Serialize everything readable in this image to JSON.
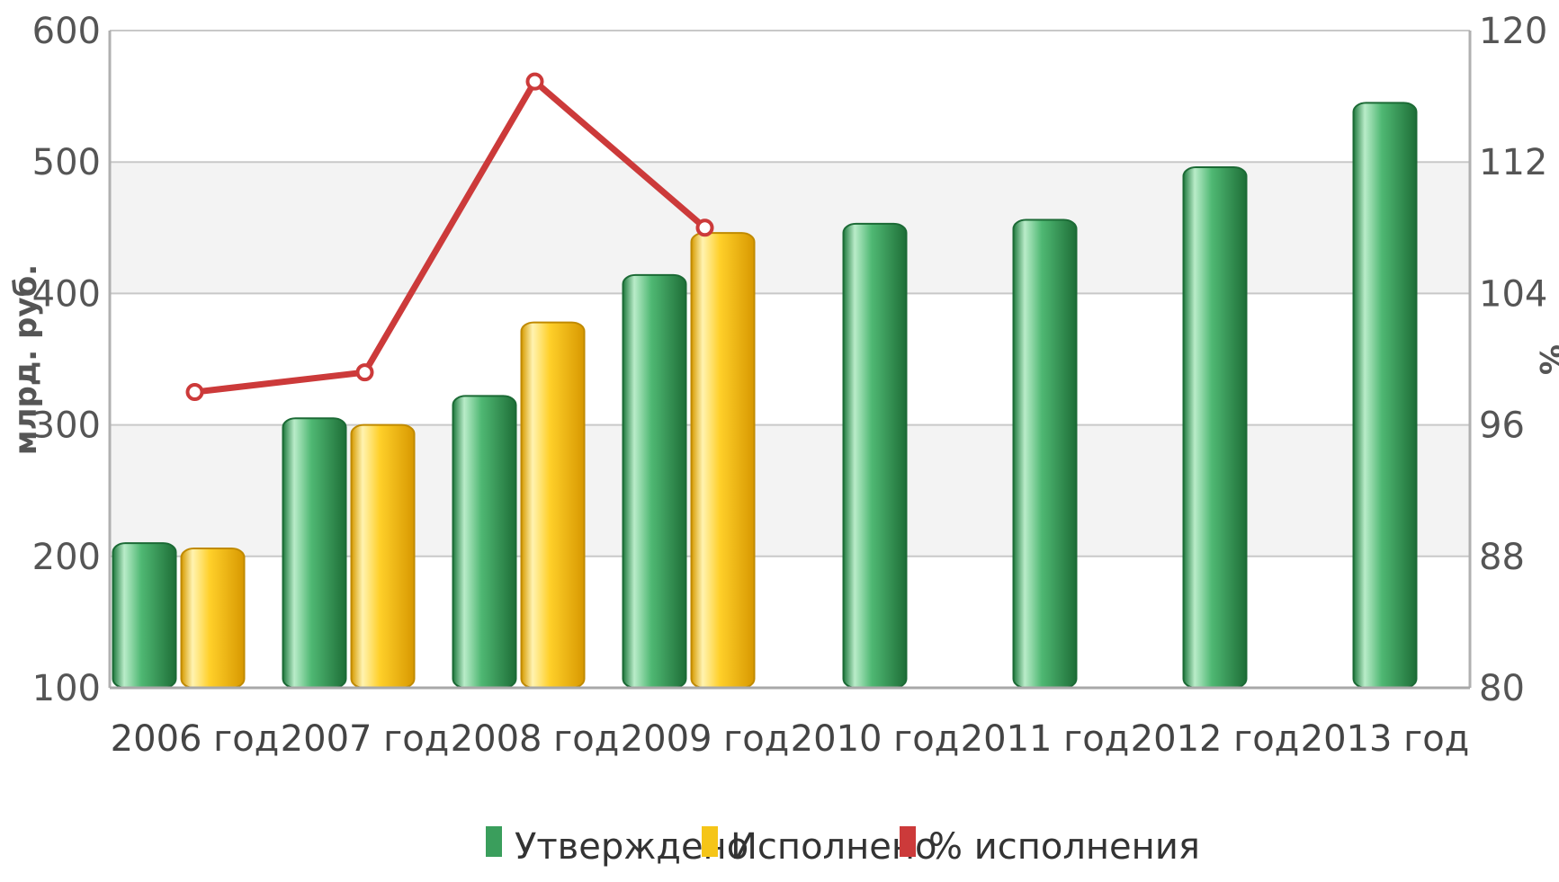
{
  "chart_data": {
    "type": "bar",
    "title": "",
    "categories": [
      "2006 год",
      "2007 год",
      "2008 год",
      "2009 год",
      "2010 год",
      "2011 год",
      "2012 год",
      "2013 год"
    ],
    "series": [
      {
        "name": "Утверждено",
        "type": "bar",
        "axis": "left",
        "color": "#3a9e5c",
        "values": [
          210,
          305,
          322,
          414,
          453,
          456,
          496,
          545
        ]
      },
      {
        "name": "Исполнено",
        "type": "bar",
        "axis": "left",
        "color": "#f5c518",
        "values": [
          206,
          300,
          378,
          446,
          null,
          null,
          null,
          null
        ]
      },
      {
        "name": "% исполнения",
        "type": "line",
        "axis": "right",
        "color": "#cc3a3a",
        "values": [
          98.0,
          99.2,
          116.9,
          108.0,
          null,
          null,
          null,
          null
        ]
      }
    ],
    "ylabel": "млрд. руб.",
    "ylim": [
      100,
      600
    ],
    "yticks": [
      "100",
      "200",
      "300",
      "400",
      "500",
      "600"
    ],
    "y2label": "%",
    "y2lim": [
      80,
      120
    ],
    "y2ticks": [
      "80",
      "88",
      "96",
      "104",
      "112",
      "120"
    ],
    "grid": true,
    "legend_position": "bottom"
  }
}
